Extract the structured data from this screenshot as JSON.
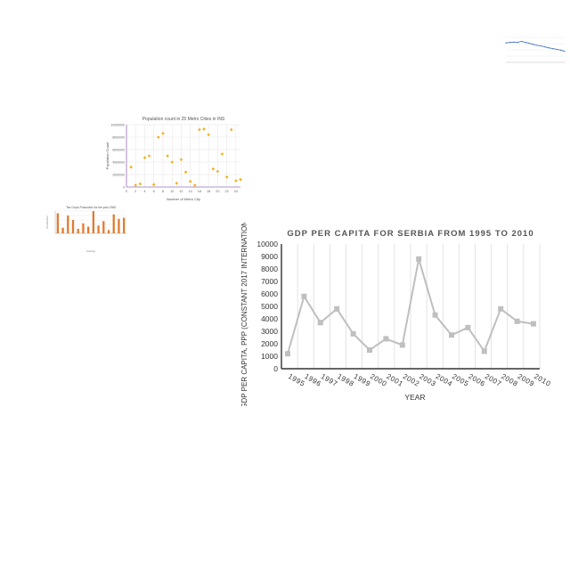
{
  "chart_data": [
    {
      "id": "gdp_serbia",
      "type": "line",
      "title": "GDP PER CAPITA FOR SERBIA FROM 1995 TO 2010",
      "xlabel": "YEAR",
      "ylabel": "GDP PER CAPITA, PPP (CONSTANT 2017 INTERNATIONAL $)",
      "categories": [
        "1995",
        "1996",
        "1997",
        "1998",
        "1999",
        "2000",
        "2001",
        "2002",
        "2003",
        "2004",
        "2005",
        "2006",
        "2007",
        "2008",
        "2009",
        "2010"
      ],
      "series": [
        {
          "values": [
            1200,
            5800,
            3700,
            4800,
            2800,
            1500,
            2400,
            1900,
            8800,
            4300,
            2700,
            3300,
            1400,
            4800,
            3800,
            3600
          ]
        }
      ],
      "ylim": [
        0,
        10000
      ],
      "yticks": [
        0,
        1000,
        2000,
        3000,
        4000,
        5000,
        6000,
        7000,
        8000,
        9000,
        10000
      ],
      "grid": "vertical",
      "legend": "none",
      "color": "#bfbfbf"
    },
    {
      "id": "metro_population",
      "type": "scatter",
      "title": "Population count in 25 Metro Cities in INS",
      "xlabel": "Number of Metro City",
      "ylabel": "Population Count",
      "xlim": [
        0,
        25
      ],
      "xticks": [
        0,
        2,
        4,
        6,
        8,
        10,
        12,
        14,
        16,
        18,
        20,
        22,
        24
      ],
      "ylim": [
        0,
        10000000
      ],
      "yticks": [
        0,
        2000000,
        4000000,
        6000000,
        8000000,
        10000000
      ],
      "x": [
        1,
        2,
        3,
        4,
        5,
        6,
        7,
        8,
        9,
        10,
        11,
        12,
        13,
        14,
        15,
        16,
        17,
        18,
        19,
        20,
        21,
        22,
        23,
        24,
        25
      ],
      "y": [
        3200000,
        300000,
        500000,
        4700000,
        5000000,
        400000,
        8000000,
        8600000,
        5000000,
        4000000,
        600000,
        4400000,
        2400000,
        900000,
        300000,
        9200000,
        9300000,
        8400000,
        2900000,
        2500000,
        5300000,
        1600000,
        9200000,
        1000000,
        1200000
      ],
      "grid": "both",
      "legend": "none",
      "color": "#f2b11a"
    },
    {
      "id": "tea_production",
      "type": "bar",
      "title": "Tea Crops Production for the year 1968",
      "xlabel": "Country",
      "ylabel": "Production",
      "categories": [
        "",
        "",
        "",
        "",
        "",
        "",
        "",
        "",
        "",
        "",
        "",
        "",
        "",
        ""
      ],
      "values": [
        90,
        25,
        80,
        60,
        20,
        45,
        30,
        100,
        35,
        55,
        15,
        85,
        65,
        70
      ],
      "legend": "none",
      "color": "#e07b2f"
    },
    {
      "id": "mini_line",
      "type": "line",
      "values": [
        0.78,
        0.8,
        0.81,
        0.8,
        0.84,
        0.8,
        0.76,
        0.72,
        0.68,
        0.66,
        0.62,
        0.58,
        0.55,
        0.52,
        0.49,
        0.44
      ],
      "legend": "none",
      "color": "#4a78c2"
    }
  ]
}
